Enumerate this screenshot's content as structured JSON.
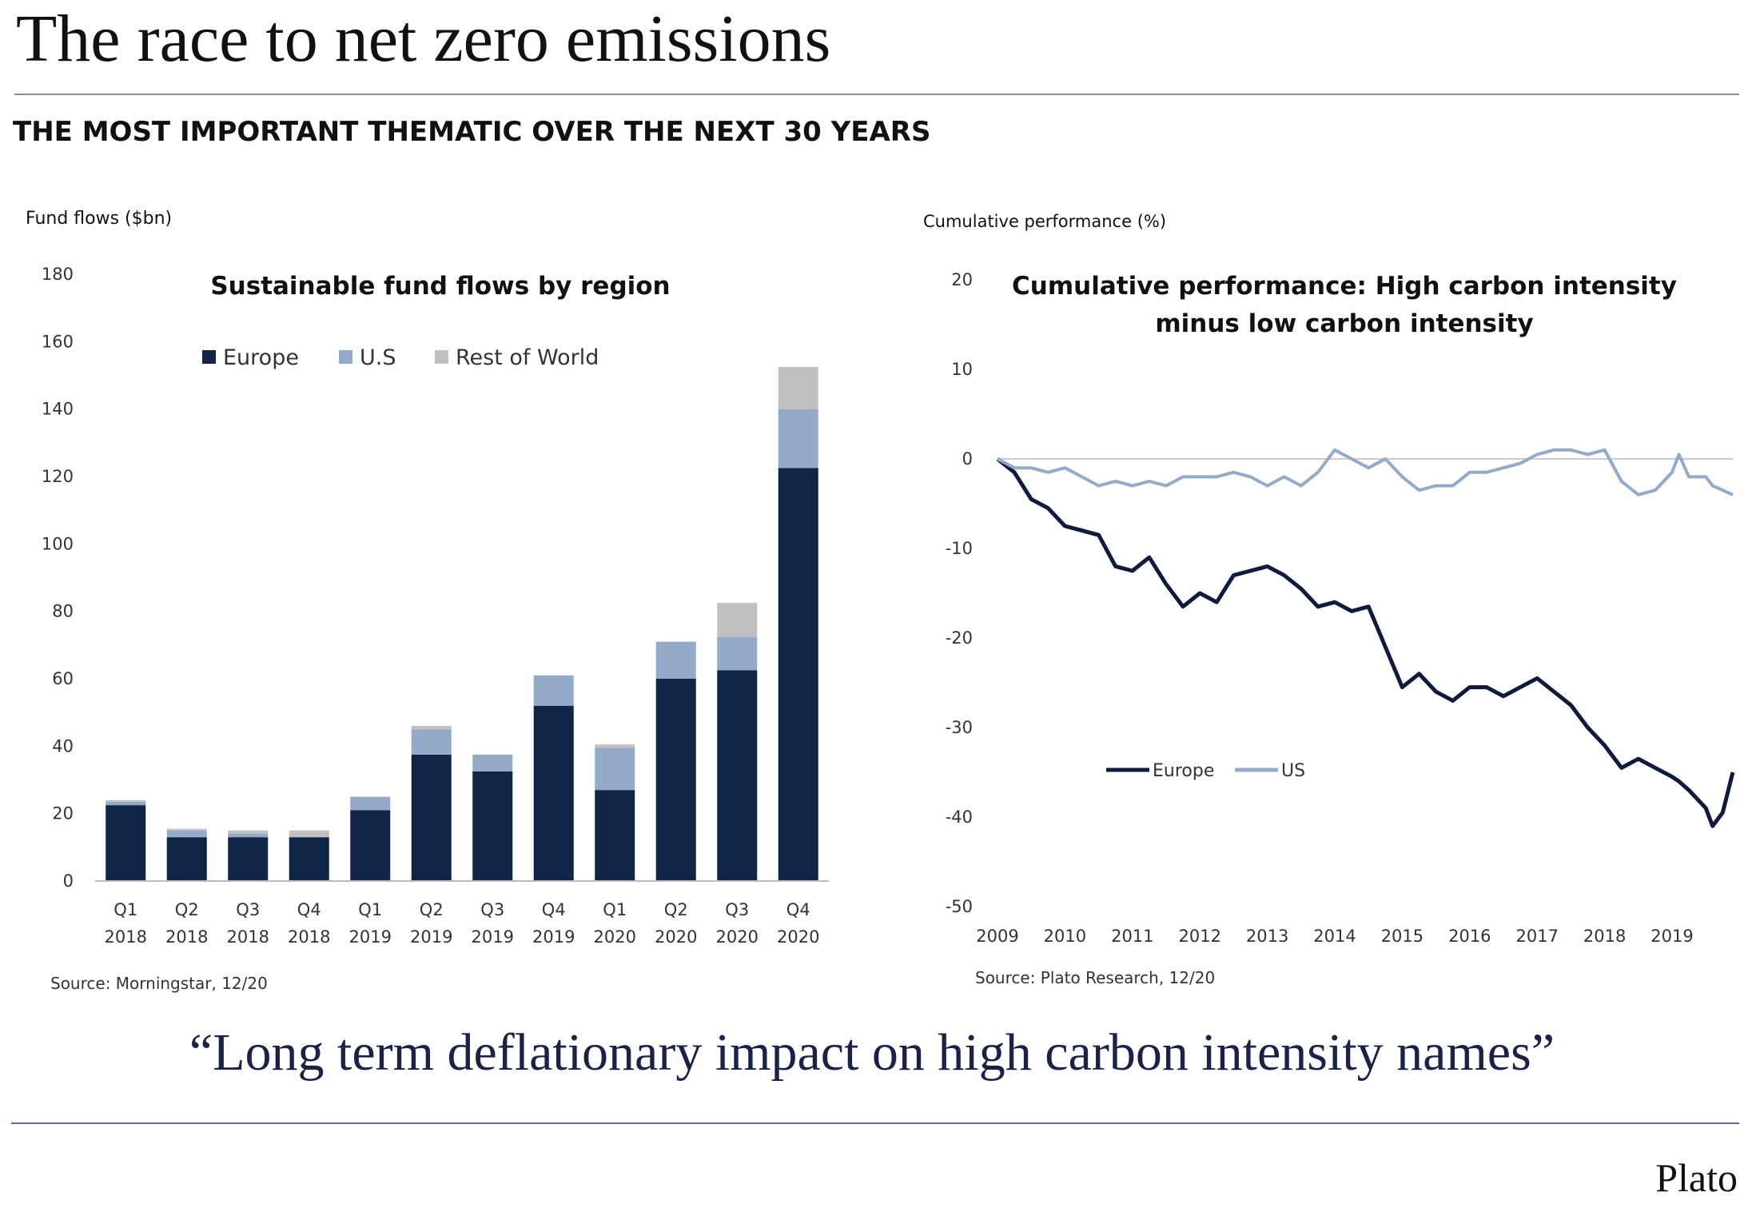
{
  "title": "The race to net zero emissions",
  "subtitle": "THE MOST IMPORTANT THEMATIC OVER THE NEXT 30 YEARS",
  "quote": "“Long term deflationary impact on high carbon intensity names”",
  "logo": "Plato",
  "chart_data": [
    {
      "type": "stacked_bar",
      "title": "Sustainable fund flows by region",
      "y_label": "Fund flows ($bn)",
      "source": "Source: Morningstar, 12/20",
      "categories": [
        "Q1 2018",
        "Q2 2018",
        "Q3 2018",
        "Q4 2018",
        "Q1 2019",
        "Q2 2019",
        "Q3 2019",
        "Q4 2019",
        "Q1 2020",
        "Q2 2020",
        "Q3 2020",
        "Q4 2020"
      ],
      "series": [
        {
          "name": "Europe",
          "color": "#0f2446",
          "values": [
            22.5,
            13,
            13,
            13,
            21,
            37.5,
            32.5,
            52,
            27,
            60,
            62.5,
            122.5
          ]
        },
        {
          "name": "U.S",
          "color": "#93aac8",
          "values": [
            1,
            2,
            1,
            0,
            4,
            7.5,
            5,
            9,
            12.5,
            11,
            10,
            17.5
          ]
        },
        {
          "name": "Rest of World",
          "color": "#c0c0c0",
          "values": [
            0.5,
            0.5,
            1,
            2,
            0,
            1,
            0,
            0,
            1,
            0,
            10,
            12.5
          ]
        }
      ],
      "ylim": [
        0,
        180
      ],
      "yticks": [
        0,
        20,
        40,
        60,
        80,
        100,
        120,
        140,
        160,
        180
      ],
      "grid": false
    },
    {
      "type": "line",
      "title": [
        "Cumulative performance: High carbon intensity",
        "minus low carbon intensity"
      ],
      "y_label": "Cumulative performance (%)",
      "source": "Source: Plato Research, 12/20",
      "x": [
        2009,
        2009.25,
        2009.5,
        2009.75,
        2010,
        2010.25,
        2010.5,
        2010.75,
        2011,
        2011.25,
        2011.5,
        2011.75,
        2012,
        2012.25,
        2012.5,
        2012.75,
        2013,
        2013.25,
        2013.5,
        2013.75,
        2014,
        2014.25,
        2014.5,
        2014.75,
        2015,
        2015.25,
        2015.5,
        2015.75,
        2016,
        2016.25,
        2016.5,
        2016.75,
        2017,
        2017.25,
        2017.5,
        2017.75,
        2018,
        2018.25,
        2018.5,
        2018.75,
        2019,
        2019.1,
        2019.25,
        2019.5,
        2019.6,
        2019.75,
        2019.9
      ],
      "series": [
        {
          "name": "Europe",
          "color": "#0f1b3d",
          "values": [
            0,
            -1.5,
            -4.5,
            -5.5,
            -7.5,
            -8,
            -8.5,
            -12,
            -12.5,
            -11,
            -14,
            -16.5,
            -15,
            -16,
            -13,
            -12.5,
            -12,
            -13,
            -14.5,
            -16.5,
            -16,
            -17,
            -16.5,
            -21,
            -25.5,
            -24,
            -26,
            -27,
            -25.5,
            -25.5,
            -26.5,
            -25.5,
            -24.5,
            -26,
            -27.5,
            -30,
            -32,
            -34.5,
            -33.5,
            -34.5,
            -35.5,
            -36,
            -37,
            -39,
            -41,
            -39.5,
            -35
          ]
        },
        {
          "name": "US",
          "color": "#93abcb",
          "values": [
            0,
            -1,
            -1,
            -1.5,
            -1,
            -2,
            -3,
            -2.5,
            -3,
            -2.5,
            -3,
            -2,
            -2,
            -2,
            -1.5,
            -2,
            -3,
            -2,
            -3,
            -1.5,
            1,
            0,
            -1,
            0,
            -2,
            -3.5,
            -3,
            -3,
            -1.5,
            -1.5,
            -1,
            -0.5,
            0.5,
            1,
            1,
            0.5,
            1,
            -2.5,
            -4,
            -3.5,
            -1.5,
            0.5,
            -2,
            -2,
            -3,
            -3.5,
            -4
          ]
        }
      ],
      "xlim": [
        2009,
        2019.9
      ],
      "xticks": [
        2009,
        2010,
        2011,
        2012,
        2013,
        2014,
        2015,
        2016,
        2017,
        2018,
        2019
      ],
      "ylim": [
        -50,
        20
      ],
      "yticks": [
        -50,
        -40,
        -30,
        -20,
        -10,
        0,
        10,
        20
      ],
      "grid": false
    }
  ]
}
